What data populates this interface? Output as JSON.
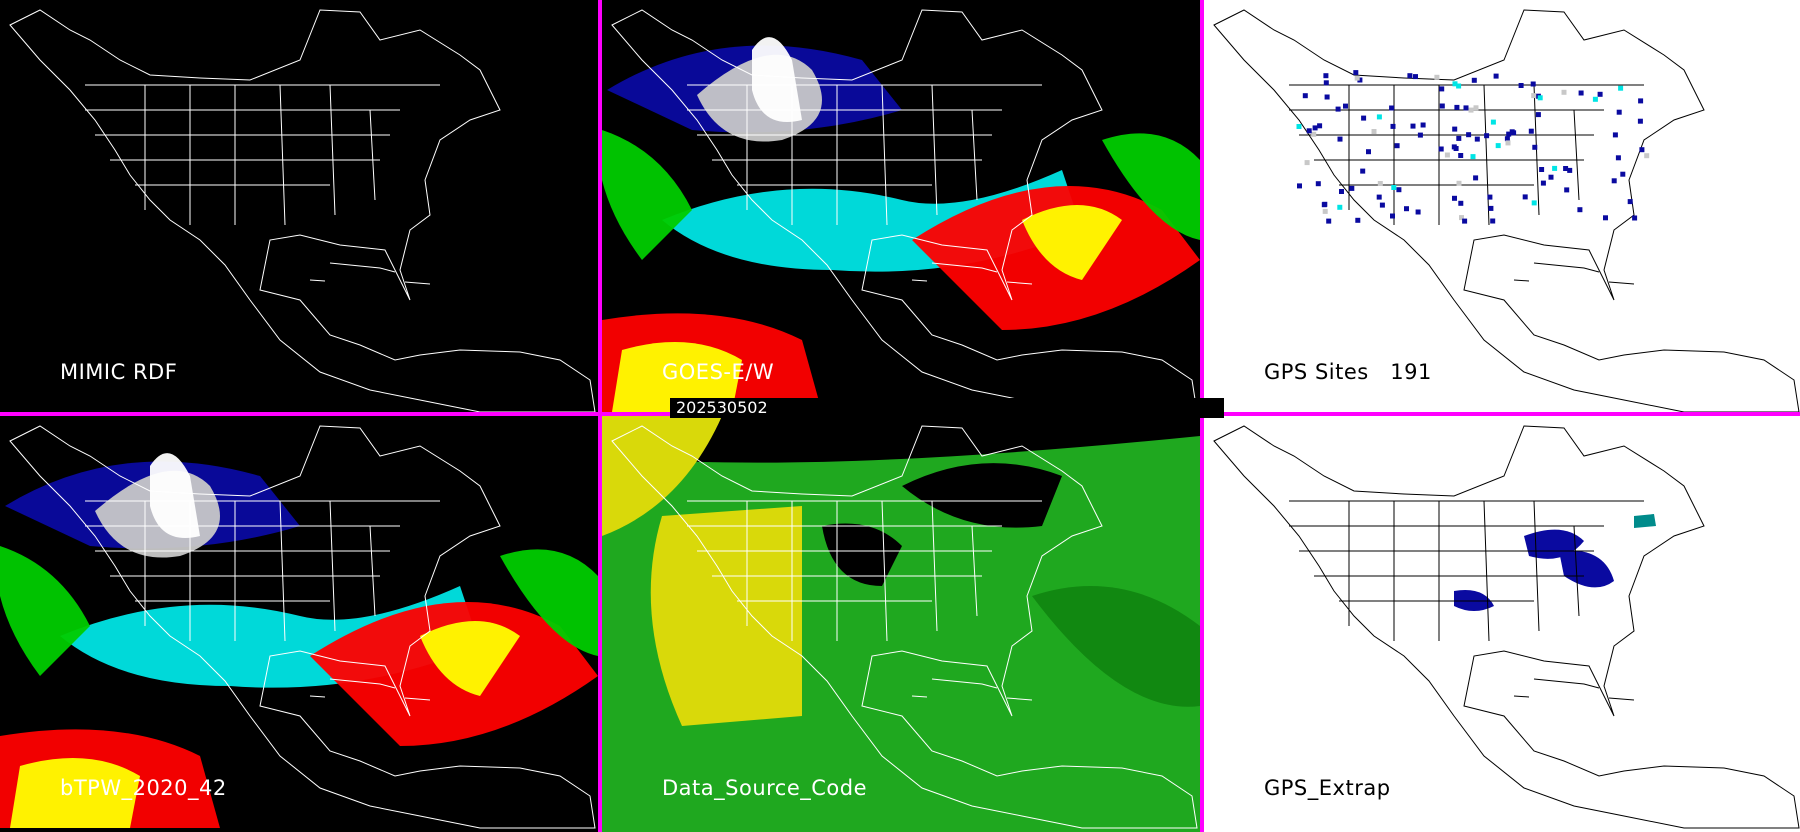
{
  "colors": {
    "divider": "#ff00ff",
    "dark_bg": "#000000",
    "light_bg": "#ffffff",
    "palette": [
      "#ffffff",
      "#c8c8c8",
      "#0a0aa0",
      "#00e5e5",
      "#00cc00",
      "#ffff00",
      "#ff0000"
    ]
  },
  "panels": [
    {
      "label": "MIMIC RDF",
      "theme": "dark",
      "overlay": "none",
      "icon": "outline-map"
    },
    {
      "label": "GOES-E/W",
      "theme": "dark",
      "overlay": "tpw",
      "icon": "tpw-map"
    },
    {
      "label": "GPS Sites   191",
      "theme": "light",
      "overlay": "sites",
      "icon": "gps-sites-map"
    },
    {
      "label": "bTPW_2020_42",
      "theme": "dark",
      "overlay": "tpw",
      "icon": "tpw-map"
    },
    {
      "label": "Data_Source_Code",
      "theme": "dark",
      "overlay": "source",
      "icon": "source-map"
    },
    {
      "label": "GPS_Extrap",
      "theme": "light",
      "overlay": "extrap",
      "icon": "gps-extrap-map"
    }
  ],
  "timestamp": "202530502"
}
